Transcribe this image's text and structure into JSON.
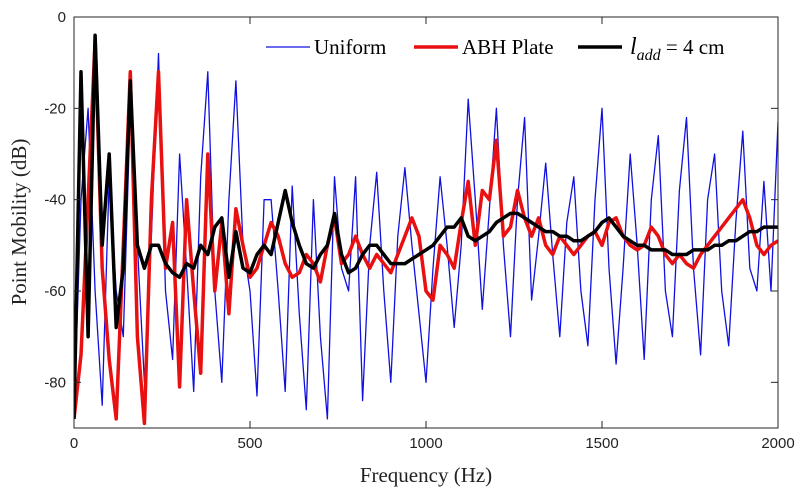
{
  "chart_data": {
    "type": "line",
    "xlabel": "Frequency (Hz)",
    "ylabel": "Point Mobility (dB)",
    "xlim": [
      0,
      2000
    ],
    "ylim": [
      -90,
      0
    ],
    "xticks": [
      0,
      500,
      1000,
      1500,
      2000
    ],
    "yticks": [
      0,
      -20,
      -40,
      -60,
      -80
    ],
    "legend": "top-right",
    "x": [
      0,
      20,
      40,
      60,
      80,
      100,
      120,
      140,
      160,
      180,
      200,
      220,
      240,
      260,
      280,
      300,
      320,
      340,
      360,
      380,
      400,
      420,
      440,
      460,
      480,
      500,
      520,
      540,
      560,
      580,
      600,
      620,
      640,
      660,
      680,
      700,
      720,
      740,
      760,
      780,
      800,
      820,
      840,
      860,
      880,
      900,
      920,
      940,
      960,
      980,
      1000,
      1020,
      1040,
      1060,
      1080,
      1100,
      1120,
      1140,
      1160,
      1180,
      1200,
      1220,
      1240,
      1260,
      1280,
      1300,
      1320,
      1340,
      1360,
      1380,
      1400,
      1420,
      1440,
      1460,
      1480,
      1500,
      1520,
      1540,
      1560,
      1580,
      1600,
      1620,
      1640,
      1660,
      1680,
      1700,
      1720,
      1740,
      1760,
      1780,
      1800,
      1820,
      1840,
      1860,
      1880,
      1900,
      1920,
      1940,
      1960,
      1980,
      2000
    ],
    "series": [
      {
        "name": "Uniform",
        "color": "#1010e0",
        "width": 1.3,
        "values": [
          -88,
          -40,
          -20,
          -60,
          -85,
          -35,
          -60,
          -70,
          -20,
          -50,
          -80,
          -48,
          -8,
          -60,
          -75,
          -30,
          -55,
          -82,
          -35,
          -12,
          -60,
          -80,
          -40,
          -14,
          -50,
          -60,
          -83,
          -40,
          -40,
          -60,
          -82,
          -37,
          -65,
          -86,
          -40,
          -70,
          -88,
          -35,
          -55,
          -60,
          -35,
          -84,
          -50,
          -34,
          -60,
          -80,
          -48,
          -33,
          -50,
          -65,
          -80,
          -55,
          -35,
          -50,
          -68,
          -50,
          -18,
          -40,
          -64,
          -42,
          -20,
          -50,
          -70,
          -40,
          -22,
          -62,
          -48,
          -32,
          -52,
          -70,
          -45,
          -35,
          -60,
          -72,
          -40,
          -20,
          -55,
          -76,
          -55,
          -30,
          -50,
          -75,
          -40,
          -26,
          -60,
          -70,
          -38,
          -22,
          -55,
          -74,
          -40,
          -30,
          -60,
          -72,
          -45,
          -25,
          -55,
          -60,
          -36,
          -60,
          -23
        ]
      },
      {
        "name": "ABH Plate",
        "color": "#e81010",
        "width": 3.5,
        "values": [
          -88,
          -74,
          -40,
          -5,
          -55,
          -75,
          -88,
          -50,
          -12,
          -70,
          -89,
          -40,
          -12,
          -55,
          -45,
          -81,
          -40,
          -60,
          -78,
          -30,
          -60,
          -45,
          -65,
          -42,
          -50,
          -57,
          -55,
          -50,
          -45,
          -48,
          -54,
          -57,
          -56,
          -52,
          -54,
          -58,
          -50,
          -44,
          -54,
          -52,
          -48,
          -52,
          -55,
          -52,
          -54,
          -56,
          -52,
          -48,
          -44,
          -48,
          -60,
          -62,
          -50,
          -52,
          -55,
          -45,
          -36,
          -50,
          -38,
          -40,
          -27,
          -48,
          -46,
          -38,
          -44,
          -48,
          -44,
          -50,
          -52,
          -48,
          -50,
          -52,
          -50,
          -48,
          -47,
          -50,
          -45,
          -44,
          -48,
          -50,
          -51,
          -50,
          -46,
          -48,
          -52,
          -54,
          -52,
          -54,
          -55,
          -52,
          -50,
          -48,
          -46,
          -44,
          -42,
          -40,
          -44,
          -50,
          -52,
          -50,
          -49
        ]
      },
      {
        "name": "ladd = 4 cm",
        "color": "#000000",
        "width": 3.5,
        "values": [
          -88,
          -12,
          -70,
          -4,
          -50,
          -30,
          -68,
          -55,
          -14,
          -50,
          -55,
          -50,
          -50,
          -54,
          -56,
          -57,
          -54,
          -55,
          -50,
          -52,
          -46,
          -44,
          -57,
          -47,
          -55,
          -56,
          -52,
          -50,
          -52,
          -45,
          -38,
          -45,
          -50,
          -54,
          -55,
          -52,
          -50,
          -43,
          -52,
          -56,
          -55,
          -52,
          -50,
          -50,
          -52,
          -54,
          -54,
          -54,
          -53,
          -52,
          -51,
          -50,
          -48,
          -46,
          -46,
          -44,
          -48,
          -49,
          -48,
          -47,
          -45,
          -44,
          -43,
          -43,
          -44,
          -45,
          -46,
          -47,
          -47,
          -48,
          -48,
          -49,
          -49,
          -48,
          -47,
          -45,
          -44,
          -46,
          -48,
          -49,
          -50,
          -50,
          -51,
          -51,
          -51,
          -52,
          -52,
          -52,
          -51,
          -51,
          -51,
          -50,
          -50,
          -49,
          -49,
          -48,
          -47,
          -47,
          -46,
          -46,
          -46
        ]
      }
    ]
  }
}
